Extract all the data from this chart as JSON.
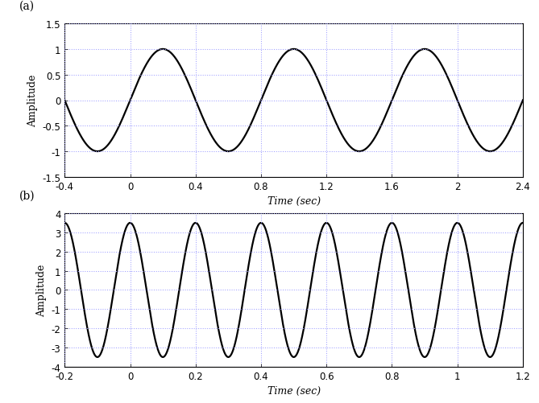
{
  "plot_a": {
    "label": "(a)",
    "amplitude": 1.0,
    "frequency": 1.25,
    "phase": 0.0,
    "t_start": -0.4,
    "t_end": 2.4,
    "xlim": [
      -0.4,
      2.4
    ],
    "ylim": [
      -1.5,
      1.5
    ],
    "xticks": [
      -0.4,
      0.0,
      0.4,
      0.8,
      1.2,
      1.6,
      2.0,
      2.4
    ],
    "yticks": [
      -1.5,
      -1.0,
      -0.5,
      0.0,
      0.5,
      1.0,
      1.5
    ],
    "xlabel": "Time (sec)",
    "ylabel": "Amplitude",
    "line_color": "#000000",
    "line_width": 1.6
  },
  "plot_b": {
    "label": "(b)",
    "amplitude": 3.5,
    "frequency": 5.0,
    "phase": 1.5707963267948966,
    "t_start": -0.2,
    "t_end": 1.2,
    "xlim": [
      -0.2,
      1.2
    ],
    "ylim": [
      -4,
      4
    ],
    "xticks": [
      -0.2,
      0.0,
      0.2,
      0.4,
      0.6,
      0.8,
      1.0,
      1.2
    ],
    "yticks": [
      -4,
      -3,
      -2,
      -1,
      0,
      1,
      2,
      3,
      4
    ],
    "xlabel": "Time (sec)",
    "ylabel": "Amplitude",
    "line_color": "#000000",
    "line_width": 1.6
  },
  "background_color": "#ffffff",
  "grid_color": "#a0a0ff",
  "grid_linestyle": ":",
  "grid_linewidth": 0.75,
  "tick_color": "#000000",
  "label_color": "#000000",
  "spine_color": "#000000",
  "figure_facecolor": "#ffffff",
  "tick_fontsize": 8.5,
  "axis_label_fontsize": 9,
  "panel_label_fontsize": 10
}
